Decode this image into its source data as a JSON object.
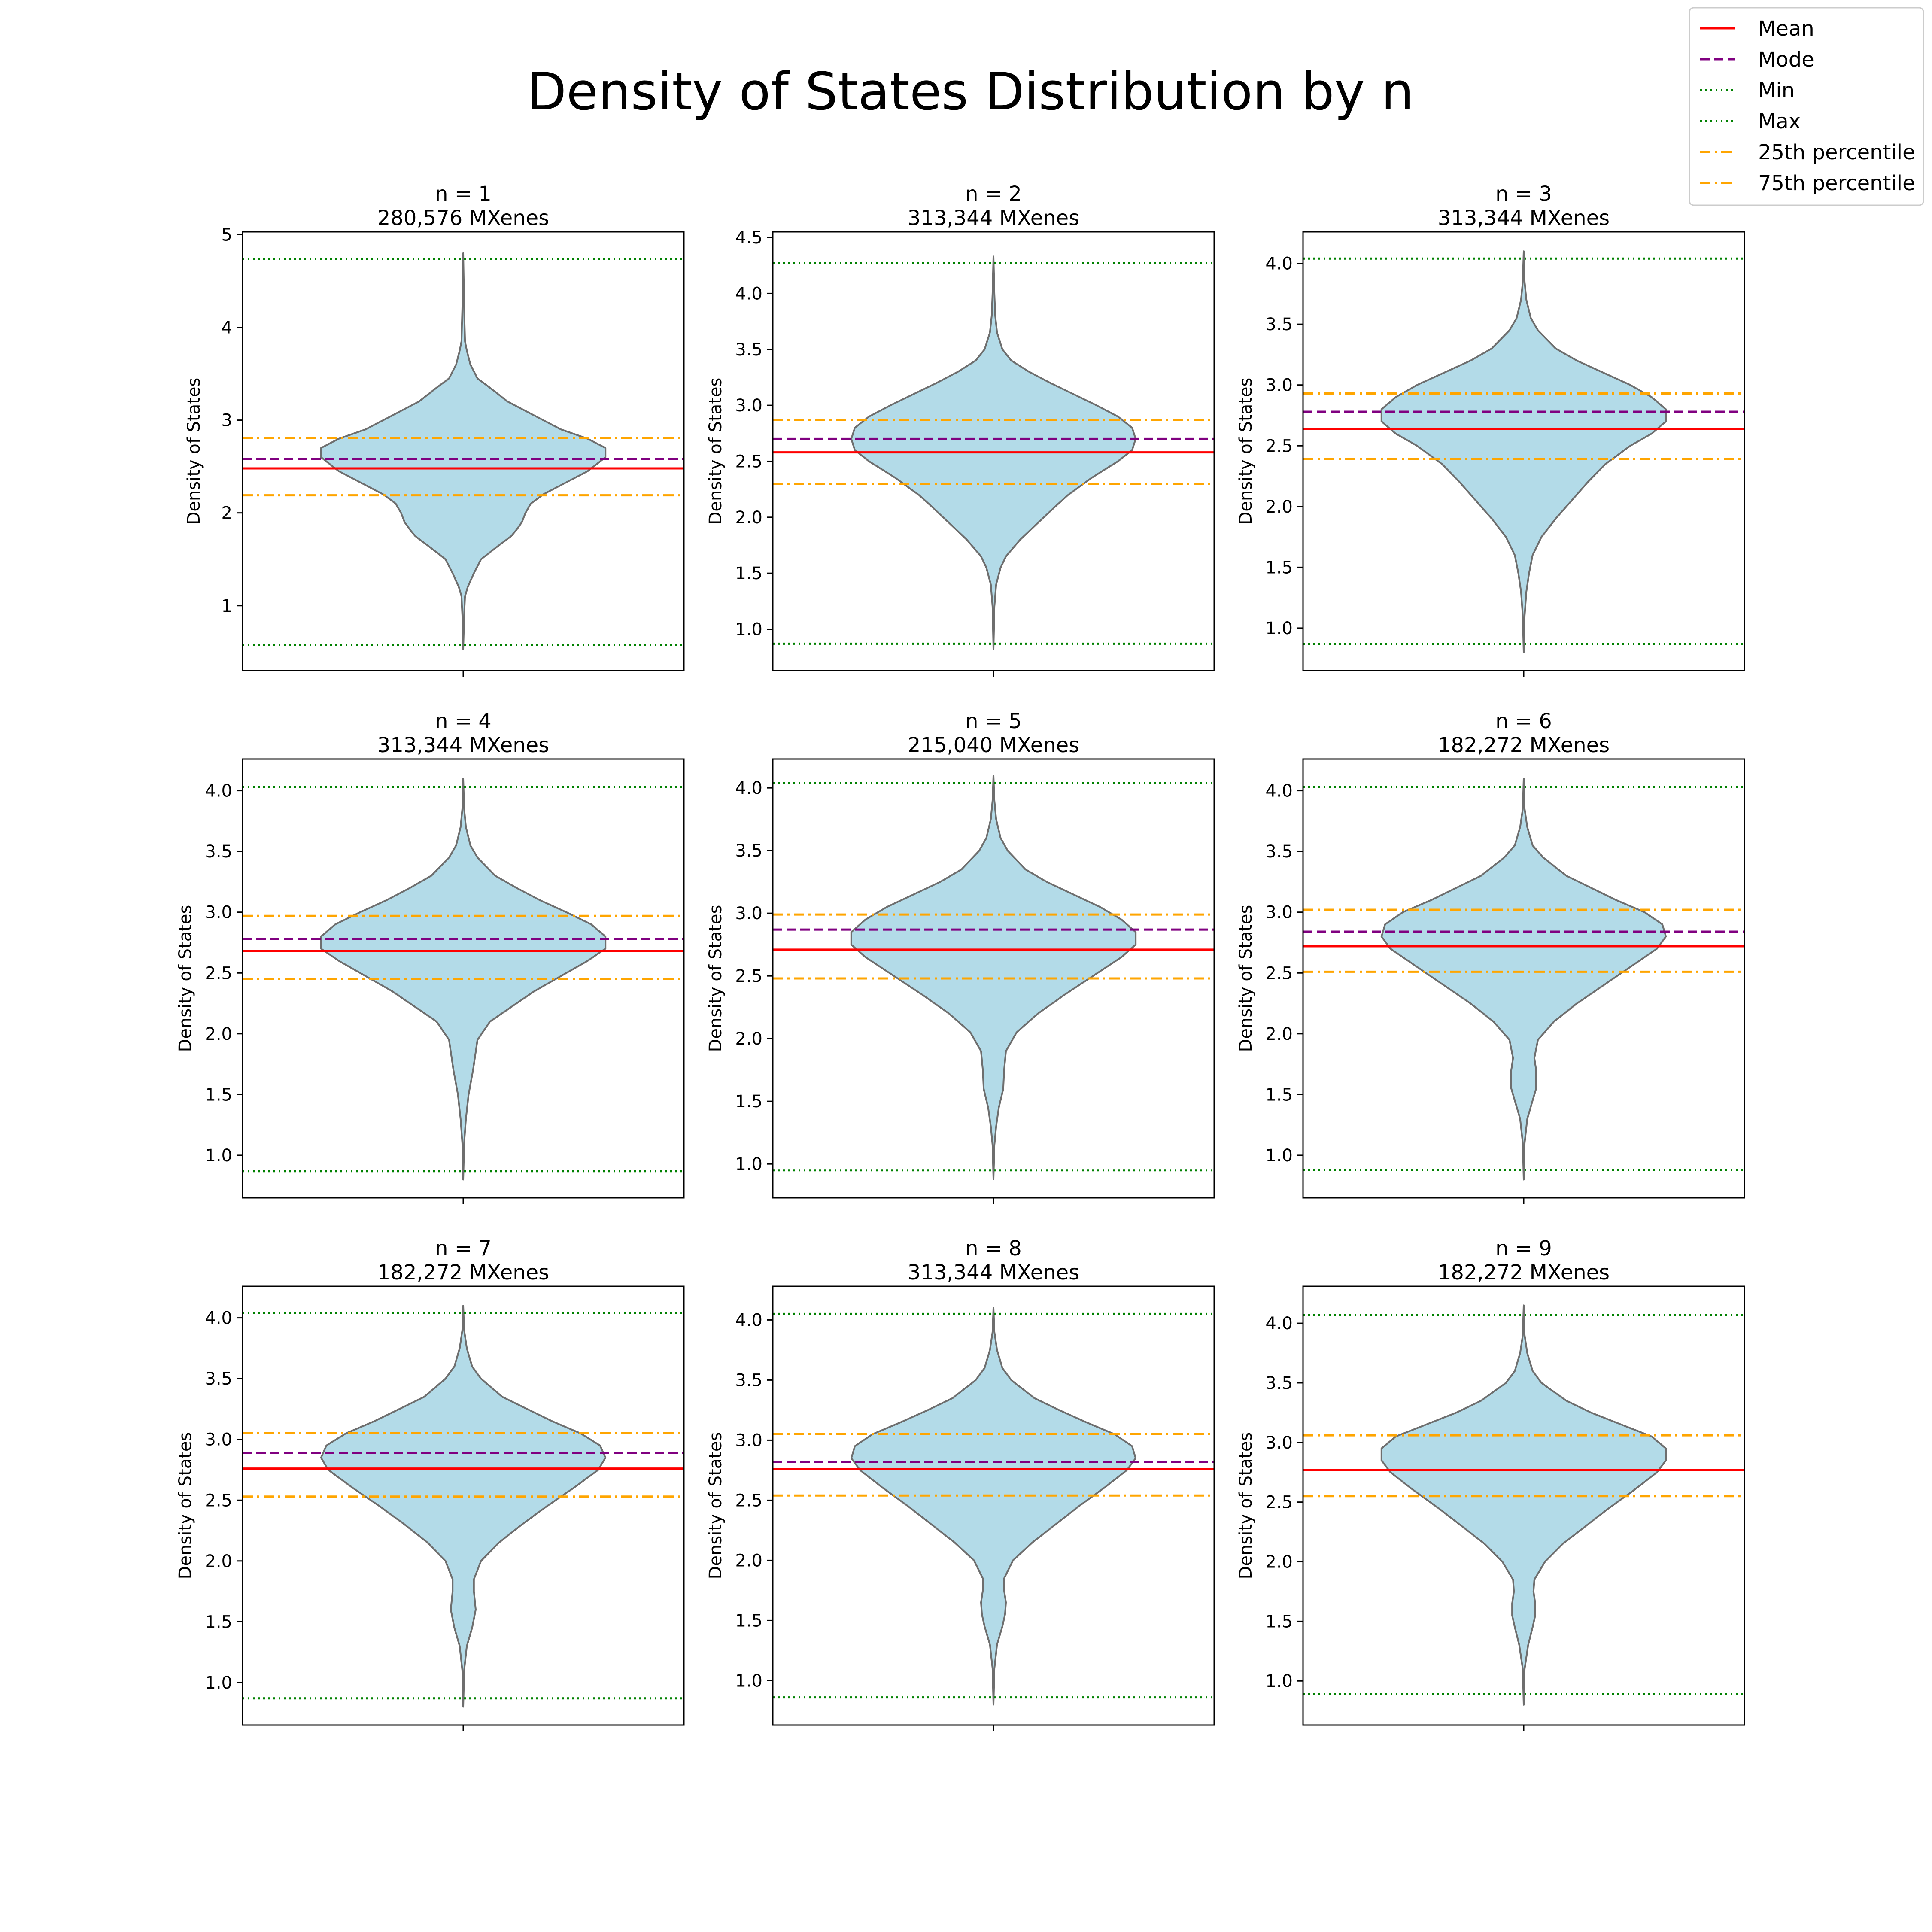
{
  "title": "Density of States Distribution by n",
  "legend": {
    "placement": "top-right",
    "entries": [
      {
        "label": "Mean",
        "color": "#ff0000",
        "style": "solid"
      },
      {
        "label": "Mode",
        "color": "#800080",
        "style": "dashed"
      },
      {
        "label": "Min",
        "color": "#008000",
        "style": "dotted"
      },
      {
        "label": "Max",
        "color": "#008000",
        "style": "dotted"
      },
      {
        "label": "25th percentile",
        "color": "#ffa500",
        "style": "dashdot"
      },
      {
        "label": "75th percentile",
        "color": "#ffa500",
        "style": "dashdot"
      }
    ]
  },
  "chart_data": [
    {
      "type": "violin",
      "title_line1": "n = 1",
      "title_line2": "280,576 MXenes",
      "ylabel": "Density of States",
      "ylim": [
        0.3,
        5.03
      ],
      "yticks": [
        1,
        2,
        3,
        4,
        5
      ],
      "ytick_labels": [
        "1",
        "2",
        "3",
        "4",
        "5"
      ],
      "stats": {
        "mean": 2.48,
        "mode": 2.58,
        "min": 0.58,
        "max": 4.74,
        "p25": 2.19,
        "p75": 2.81
      },
      "profile": [
        [
          0.53,
          0.0
        ],
        [
          0.9,
          0.005
        ],
        [
          1.1,
          0.01
        ],
        [
          1.2,
          0.025
        ],
        [
          1.35,
          0.06
        ],
        [
          1.5,
          0.1
        ],
        [
          1.62,
          0.18
        ],
        [
          1.75,
          0.27
        ],
        [
          1.82,
          0.3
        ],
        [
          1.9,
          0.33
        ],
        [
          2.0,
          0.35
        ],
        [
          2.1,
          0.38
        ],
        [
          2.2,
          0.45
        ],
        [
          2.3,
          0.55
        ],
        [
          2.45,
          0.7
        ],
        [
          2.6,
          0.8
        ],
        [
          2.7,
          0.8
        ],
        [
          2.8,
          0.7
        ],
        [
          2.9,
          0.55
        ],
        [
          3.0,
          0.45
        ],
        [
          3.1,
          0.35
        ],
        [
          3.2,
          0.25
        ],
        [
          3.35,
          0.15
        ],
        [
          3.45,
          0.08
        ],
        [
          3.6,
          0.04
        ],
        [
          3.75,
          0.02
        ],
        [
          3.85,
          0.01
        ],
        [
          4.2,
          0.005
        ],
        [
          4.8,
          0.0
        ]
      ]
    },
    {
      "type": "violin",
      "title_line1": "n = 2",
      "title_line2": "313,344 MXenes",
      "ylabel": "Density of States",
      "ylim": [
        0.63,
        4.55
      ],
      "yticks": [
        1.0,
        1.5,
        2.0,
        2.5,
        3.0,
        3.5,
        4.0,
        4.5
      ],
      "ytick_labels": [
        "1.0",
        "1.5",
        "2.0",
        "2.5",
        "3.0",
        "3.5",
        "4.0",
        "4.5"
      ],
      "stats": {
        "mean": 2.58,
        "mode": 2.7,
        "min": 0.87,
        "max": 4.27,
        "p25": 2.3,
        "p75": 2.87
      },
      "profile": [
        [
          0.82,
          0.0
        ],
        [
          1.2,
          0.005
        ],
        [
          1.4,
          0.015
        ],
        [
          1.55,
          0.04
        ],
        [
          1.65,
          0.07
        ],
        [
          1.8,
          0.15
        ],
        [
          1.95,
          0.25
        ],
        [
          2.1,
          0.35
        ],
        [
          2.2,
          0.42
        ],
        [
          2.35,
          0.55
        ],
        [
          2.5,
          0.7
        ],
        [
          2.6,
          0.78
        ],
        [
          2.7,
          0.8
        ],
        [
          2.8,
          0.78
        ],
        [
          2.9,
          0.7
        ],
        [
          3.0,
          0.58
        ],
        [
          3.1,
          0.45
        ],
        [
          3.2,
          0.32
        ],
        [
          3.3,
          0.2
        ],
        [
          3.4,
          0.1
        ],
        [
          3.5,
          0.05
        ],
        [
          3.65,
          0.02
        ],
        [
          3.8,
          0.01
        ],
        [
          4.0,
          0.005
        ],
        [
          4.33,
          0.0
        ]
      ]
    },
    {
      "type": "violin",
      "title_line1": "n = 3",
      "title_line2": "313,344 MXenes",
      "ylabel": "Density of States",
      "ylim": [
        0.65,
        4.26
      ],
      "yticks": [
        1.0,
        1.5,
        2.0,
        2.5,
        3.0,
        3.5,
        4.0
      ],
      "ytick_labels": [
        "1.0",
        "1.5",
        "2.0",
        "2.5",
        "3.0",
        "3.5",
        "4.0"
      ],
      "stats": {
        "mean": 2.64,
        "mode": 2.78,
        "min": 0.87,
        "max": 4.04,
        "p25": 2.39,
        "p75": 2.93
      },
      "profile": [
        [
          0.8,
          0.0
        ],
        [
          1.1,
          0.005
        ],
        [
          1.3,
          0.015
        ],
        [
          1.45,
          0.03
        ],
        [
          1.6,
          0.05
        ],
        [
          1.75,
          0.1
        ],
        [
          1.9,
          0.18
        ],
        [
          2.05,
          0.27
        ],
        [
          2.2,
          0.36
        ],
        [
          2.35,
          0.46
        ],
        [
          2.5,
          0.6
        ],
        [
          2.6,
          0.72
        ],
        [
          2.7,
          0.8
        ],
        [
          2.8,
          0.8
        ],
        [
          2.9,
          0.72
        ],
        [
          3.0,
          0.6
        ],
        [
          3.1,
          0.45
        ],
        [
          3.2,
          0.3
        ],
        [
          3.3,
          0.18
        ],
        [
          3.45,
          0.08
        ],
        [
          3.55,
          0.04
        ],
        [
          3.7,
          0.015
        ],
        [
          3.85,
          0.005
        ],
        [
          4.1,
          0.0
        ]
      ]
    },
    {
      "type": "violin",
      "title_line1": "n = 4",
      "title_line2": "313,344 MXenes",
      "ylabel": "Density of States",
      "ylim": [
        0.65,
        4.26
      ],
      "yticks": [
        1.0,
        1.5,
        2.0,
        2.5,
        3.0,
        3.5,
        4.0
      ],
      "ytick_labels": [
        "1.0",
        "1.5",
        "2.0",
        "2.5",
        "3.0",
        "3.5",
        "4.0"
      ],
      "stats": {
        "mean": 2.68,
        "mode": 2.78,
        "min": 0.87,
        "max": 4.03,
        "p25": 2.45,
        "p75": 2.97
      },
      "profile": [
        [
          0.8,
          0.0
        ],
        [
          1.1,
          0.005
        ],
        [
          1.3,
          0.015
        ],
        [
          1.5,
          0.03
        ],
        [
          1.7,
          0.055
        ],
        [
          1.85,
          0.07
        ],
        [
          1.95,
          0.08
        ],
        [
          2.1,
          0.15
        ],
        [
          2.2,
          0.25
        ],
        [
          2.35,
          0.4
        ],
        [
          2.5,
          0.58
        ],
        [
          2.6,
          0.7
        ],
        [
          2.7,
          0.8
        ],
        [
          2.8,
          0.8
        ],
        [
          2.9,
          0.72
        ],
        [
          3.0,
          0.58
        ],
        [
          3.1,
          0.43
        ],
        [
          3.2,
          0.3
        ],
        [
          3.3,
          0.18
        ],
        [
          3.45,
          0.08
        ],
        [
          3.55,
          0.04
        ],
        [
          3.7,
          0.015
        ],
        [
          3.85,
          0.005
        ],
        [
          4.1,
          0.0
        ]
      ]
    },
    {
      "type": "violin",
      "title_line1": "n = 5",
      "title_line2": "215,040 MXenes",
      "ylabel": "Density of States",
      "ylim": [
        0.73,
        4.23
      ],
      "yticks": [
        1.0,
        1.5,
        2.0,
        2.5,
        3.0,
        3.5,
        4.0
      ],
      "ytick_labels": [
        "1.0",
        "1.5",
        "2.0",
        "2.5",
        "3.0",
        "3.5",
        "4.0"
      ],
      "stats": {
        "mean": 2.71,
        "mode": 2.87,
        "min": 0.95,
        "max": 4.04,
        "p25": 2.48,
        "p75": 2.99
      },
      "profile": [
        [
          0.88,
          0.0
        ],
        [
          1.15,
          0.005
        ],
        [
          1.3,
          0.015
        ],
        [
          1.45,
          0.03
        ],
        [
          1.6,
          0.055
        ],
        [
          1.75,
          0.06
        ],
        [
          1.9,
          0.07
        ],
        [
          2.05,
          0.13
        ],
        [
          2.2,
          0.25
        ],
        [
          2.35,
          0.4
        ],
        [
          2.5,
          0.56
        ],
        [
          2.65,
          0.72
        ],
        [
          2.75,
          0.8
        ],
        [
          2.85,
          0.8
        ],
        [
          2.95,
          0.72
        ],
        [
          3.05,
          0.6
        ],
        [
          3.15,
          0.45
        ],
        [
          3.25,
          0.3
        ],
        [
          3.35,
          0.18
        ],
        [
          3.5,
          0.08
        ],
        [
          3.6,
          0.04
        ],
        [
          3.75,
          0.015
        ],
        [
          3.9,
          0.005
        ],
        [
          4.1,
          0.0
        ]
      ]
    },
    {
      "type": "violin",
      "title_line1": "n = 6",
      "title_line2": "182,272 MXenes",
      "ylabel": "Density of States",
      "ylim": [
        0.65,
        4.26
      ],
      "yticks": [
        1.0,
        1.5,
        2.0,
        2.5,
        3.0,
        3.5,
        4.0
      ],
      "ytick_labels": [
        "1.0",
        "1.5",
        "2.0",
        "2.5",
        "3.0",
        "3.5",
        "4.0"
      ],
      "stats": {
        "mean": 2.72,
        "mode": 2.84,
        "min": 0.88,
        "max": 4.03,
        "p25": 2.51,
        "p75": 3.02
      },
      "profile": [
        [
          0.8,
          0.0
        ],
        [
          1.1,
          0.005
        ],
        [
          1.3,
          0.02
        ],
        [
          1.45,
          0.05
        ],
        [
          1.55,
          0.07
        ],
        [
          1.7,
          0.07
        ],
        [
          1.8,
          0.06
        ],
        [
          1.95,
          0.08
        ],
        [
          2.1,
          0.17
        ],
        [
          2.25,
          0.3
        ],
        [
          2.4,
          0.45
        ],
        [
          2.55,
          0.6
        ],
        [
          2.7,
          0.75
        ],
        [
          2.8,
          0.8
        ],
        [
          2.9,
          0.78
        ],
        [
          3.0,
          0.68
        ],
        [
          3.1,
          0.52
        ],
        [
          3.2,
          0.38
        ],
        [
          3.3,
          0.24
        ],
        [
          3.45,
          0.11
        ],
        [
          3.55,
          0.05
        ],
        [
          3.7,
          0.02
        ],
        [
          3.85,
          0.005
        ],
        [
          4.1,
          0.0
        ]
      ]
    },
    {
      "type": "violin",
      "title_line1": "n = 7",
      "title_line2": "182,272 MXenes",
      "ylabel": "Density of States",
      "ylim": [
        0.65,
        4.26
      ],
      "yticks": [
        1.0,
        1.5,
        2.0,
        2.5,
        3.0,
        3.5,
        4.0
      ],
      "ytick_labels": [
        "1.0",
        "1.5",
        "2.0",
        "2.5",
        "3.0",
        "3.5",
        "4.0"
      ],
      "stats": {
        "mean": 2.76,
        "mode": 2.89,
        "min": 0.87,
        "max": 4.04,
        "p25": 2.53,
        "p75": 3.05
      },
      "profile": [
        [
          0.8,
          0.0
        ],
        [
          1.1,
          0.005
        ],
        [
          1.3,
          0.02
        ],
        [
          1.45,
          0.05
        ],
        [
          1.6,
          0.07
        ],
        [
          1.75,
          0.06
        ],
        [
          1.85,
          0.06
        ],
        [
          2.0,
          0.1
        ],
        [
          2.15,
          0.2
        ],
        [
          2.3,
          0.33
        ],
        [
          2.45,
          0.47
        ],
        [
          2.6,
          0.62
        ],
        [
          2.75,
          0.76
        ],
        [
          2.85,
          0.8
        ],
        [
          2.95,
          0.77
        ],
        [
          3.05,
          0.66
        ],
        [
          3.15,
          0.5
        ],
        [
          3.25,
          0.36
        ],
        [
          3.35,
          0.22
        ],
        [
          3.5,
          0.1
        ],
        [
          3.6,
          0.05
        ],
        [
          3.75,
          0.02
        ],
        [
          3.9,
          0.005
        ],
        [
          4.1,
          0.0
        ]
      ]
    },
    {
      "type": "violin",
      "title_line1": "n = 8",
      "title_line2": "313,344 MXenes",
      "ylabel": "Density of States",
      "ylim": [
        0.63,
        4.28
      ],
      "yticks": [
        1.0,
        1.5,
        2.0,
        2.5,
        3.0,
        3.5,
        4.0
      ],
      "ytick_labels": [
        "1.0",
        "1.5",
        "2.0",
        "2.5",
        "3.0",
        "3.5",
        "4.0"
      ],
      "stats": {
        "mean": 2.76,
        "mode": 2.82,
        "min": 0.86,
        "max": 4.05,
        "p25": 2.54,
        "p75": 3.05
      },
      "profile": [
        [
          0.8,
          0.0
        ],
        [
          1.1,
          0.005
        ],
        [
          1.3,
          0.02
        ],
        [
          1.45,
          0.05
        ],
        [
          1.55,
          0.065
        ],
        [
          1.65,
          0.07
        ],
        [
          1.75,
          0.06
        ],
        [
          1.85,
          0.06
        ],
        [
          2.0,
          0.11
        ],
        [
          2.15,
          0.22
        ],
        [
          2.3,
          0.35
        ],
        [
          2.45,
          0.48
        ],
        [
          2.6,
          0.62
        ],
        [
          2.75,
          0.75
        ],
        [
          2.85,
          0.8
        ],
        [
          2.95,
          0.78
        ],
        [
          3.05,
          0.68
        ],
        [
          3.15,
          0.52
        ],
        [
          3.25,
          0.37
        ],
        [
          3.35,
          0.23
        ],
        [
          3.5,
          0.1
        ],
        [
          3.6,
          0.05
        ],
        [
          3.75,
          0.02
        ],
        [
          3.9,
          0.005
        ],
        [
          4.1,
          0.0
        ]
      ]
    },
    {
      "type": "violin",
      "title_line1": "n = 9",
      "title_line2": "182,272 MXenes",
      "ylabel": "Density of States",
      "ylim": [
        0.63,
        4.31
      ],
      "yticks": [
        1.0,
        1.5,
        2.0,
        2.5,
        3.0,
        3.5,
        4.0
      ],
      "ytick_labels": [
        "1.0",
        "1.5",
        "2.0",
        "2.5",
        "3.0",
        "3.5",
        "4.0"
      ],
      "stats": {
        "mean": 2.77,
        "mode": 2.77,
        "min": 0.89,
        "max": 4.07,
        "p25": 2.55,
        "p75": 3.06
      },
      "profile": [
        [
          0.8,
          0.0
        ],
        [
          1.1,
          0.005
        ],
        [
          1.3,
          0.025
        ],
        [
          1.45,
          0.05
        ],
        [
          1.55,
          0.065
        ],
        [
          1.65,
          0.065
        ],
        [
          1.75,
          0.055
        ],
        [
          1.85,
          0.06
        ],
        [
          2.0,
          0.12
        ],
        [
          2.15,
          0.22
        ],
        [
          2.3,
          0.35
        ],
        [
          2.45,
          0.48
        ],
        [
          2.6,
          0.62
        ],
        [
          2.75,
          0.75
        ],
        [
          2.85,
          0.8
        ],
        [
          2.95,
          0.8
        ],
        [
          3.05,
          0.72
        ],
        [
          3.15,
          0.55
        ],
        [
          3.25,
          0.38
        ],
        [
          3.35,
          0.24
        ],
        [
          3.5,
          0.1
        ],
        [
          3.6,
          0.05
        ],
        [
          3.75,
          0.02
        ],
        [
          3.9,
          0.005
        ],
        [
          4.15,
          0.0
        ]
      ]
    }
  ]
}
